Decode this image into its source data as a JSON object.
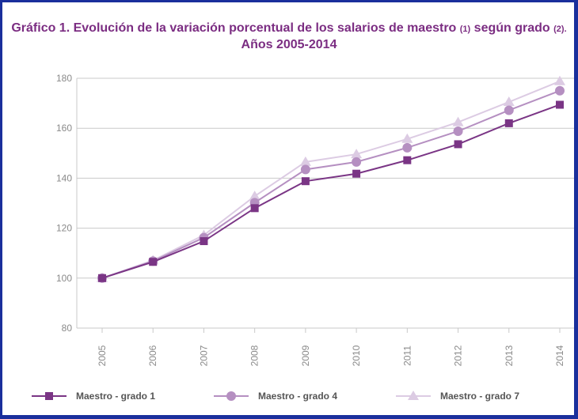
{
  "chart_data": {
    "type": "line",
    "title_line1": "Gráfico 1. Evolución de la variación porcentual de los salarios de maestro",
    "title_note1": "(1)",
    "title_mid": "según grado",
    "title_note2": "(2).",
    "title_line2": "Años 2005-2014",
    "xlabel": "",
    "ylabel": "",
    "x": [
      "2005",
      "2006",
      "2007",
      "2008",
      "2009",
      "2010",
      "2011",
      "2012",
      "2013",
      "2014"
    ],
    "ylim": [
      80,
      180
    ],
    "yticks": [
      "80",
      "100",
      "120",
      "140",
      "160",
      "180"
    ],
    "grid": true,
    "legend_position": "bottom",
    "series": [
      {
        "name": "Maestro - grado 1",
        "marker": "square",
        "color": "#7a3585",
        "values": [
          100,
          106.5,
          114.8,
          128,
          138.8,
          141.8,
          147.2,
          153.6,
          162,
          169.4
        ]
      },
      {
        "name": "Maestro - grado 4",
        "marker": "circle",
        "color": "#b58fc1",
        "values": [
          100,
          106.8,
          116.2,
          130.2,
          143.5,
          146.5,
          152.2,
          158.8,
          167.2,
          175
        ]
      },
      {
        "name": "Maestro - grado 7",
        "marker": "triangle",
        "color": "#dccbe3",
        "values": [
          100,
          107.1,
          117.2,
          132.8,
          146.5,
          149.6,
          155.7,
          162.4,
          170.5,
          178.8
        ]
      }
    ]
  }
}
